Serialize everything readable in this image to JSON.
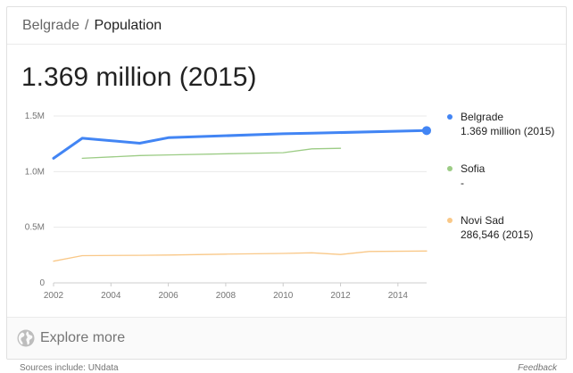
{
  "breadcrumb": {
    "parent": "Belgrade",
    "separator": "/",
    "current": "Population"
  },
  "headline": "1.369 million (2015)",
  "legend": [
    {
      "name": "Belgrade",
      "value": "1.369 million (2015)",
      "color": "#4285f4"
    },
    {
      "name": "Sofia",
      "value": "-",
      "color": "#9ccc85"
    },
    {
      "name": "Novi Sad",
      "value": "286,546 (2015)",
      "color": "#f9c888"
    }
  ],
  "footer": {
    "explore_label": "Explore more",
    "icon": "globe-icon"
  },
  "sources_text": "Sources include: UNdata",
  "feedback_label": "Feedback",
  "colors": {
    "accent": "#4285f4",
    "grid": "#e8e8e8",
    "axis_text": "#757575"
  },
  "chart_data": {
    "type": "line",
    "title": "",
    "xlabel": "",
    "ylabel": "",
    "xlim": [
      2002,
      2015
    ],
    "ylim": [
      0,
      1500000
    ],
    "yticks": [
      {
        "value": 0,
        "label": "0"
      },
      {
        "value": 500000,
        "label": "0.5M"
      },
      {
        "value": 1000000,
        "label": "1.0M"
      },
      {
        "value": 1500000,
        "label": "1.5M"
      }
    ],
    "xticks": [
      {
        "value": 2002,
        "label": "2002"
      },
      {
        "value": 2004,
        "label": "2004"
      },
      {
        "value": 2006,
        "label": "2006"
      },
      {
        "value": 2008,
        "label": "2008"
      },
      {
        "value": 2010,
        "label": "2010"
      },
      {
        "value": 2012,
        "label": "2012"
      },
      {
        "value": 2014,
        "label": "2014"
      }
    ],
    "grid": true,
    "legend_position": "right",
    "series": [
      {
        "name": "Belgrade",
        "color": "#4285f4",
        "highlight_last": true,
        "x": [
          2002,
          2003,
          2005,
          2006,
          2010,
          2011,
          2015
        ],
        "y": [
          1120000,
          1300000,
          1255000,
          1305000,
          1340000,
          1345000,
          1369000
        ]
      },
      {
        "name": "Sofia",
        "color": "#9ccc85",
        "highlight_last": false,
        "x": [
          2003,
          2005,
          2006,
          2010,
          2011,
          2012
        ],
        "y": [
          1120000,
          1145000,
          1150000,
          1170000,
          1205000,
          1210000
        ]
      },
      {
        "name": "Novi Sad",
        "color": "#f9c888",
        "highlight_last": false,
        "x": [
          2002,
          2003,
          2005,
          2006,
          2008,
          2010,
          2011,
          2012,
          2013,
          2015
        ],
        "y": [
          195000,
          245000,
          248000,
          250000,
          258000,
          265000,
          270000,
          255000,
          282000,
          286546
        ]
      }
    ]
  }
}
